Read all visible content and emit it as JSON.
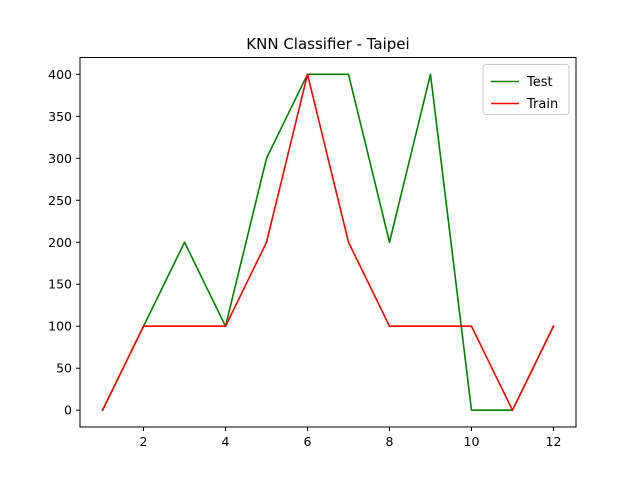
{
  "chart_data": {
    "type": "line",
    "title": "KNN Classifier - Taipei",
    "xlabel": "",
    "ylabel": "",
    "x": [
      1,
      2,
      3,
      4,
      5,
      6,
      7,
      8,
      9,
      10,
      11,
      12
    ],
    "xlim": [
      0.45,
      12.55
    ],
    "ylim": [
      -20,
      420
    ],
    "xticks": [
      2,
      4,
      6,
      8,
      10,
      12
    ],
    "yticks": [
      0,
      50,
      100,
      150,
      200,
      250,
      300,
      350,
      400
    ],
    "grid": false,
    "legend_position": "top-right",
    "series": [
      {
        "name": "Test",
        "color": "#008000",
        "values": [
          0,
          100,
          200,
          100,
          300,
          400,
          400,
          200,
          400,
          0,
          0,
          100
        ]
      },
      {
        "name": "Train",
        "color": "#ff0000",
        "values": [
          0,
          100,
          100,
          100,
          200,
          400,
          200,
          100,
          100,
          100,
          0,
          100
        ]
      }
    ]
  }
}
